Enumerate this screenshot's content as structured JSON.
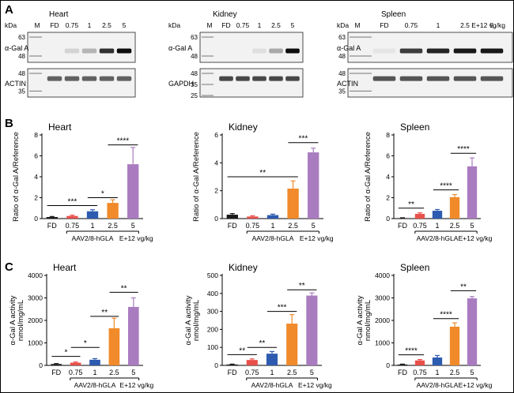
{
  "panels": {
    "A": "A",
    "B": "B",
    "C": "C"
  },
  "colors": {
    "FD": "#1a1a1a",
    "0.75": "#e8504a",
    "1": "#2d5bb0",
    "2.5": "#f08a2a",
    "5": "#a97cc0"
  },
  "blots": [
    {
      "tissue": "Heart",
      "kda": "kDa",
      "lanes": [
        "M",
        "FD",
        "0.75",
        "1",
        "2.5",
        "5"
      ],
      "top": {
        "protein": "α-Gal A",
        "markers": [
          "63",
          "48"
        ]
      },
      "bottom": {
        "protein": "ACTIN",
        "markers": [
          "48",
          "35"
        ]
      },
      "top_intensity": [
        0,
        0,
        0.12,
        0.25,
        0.8,
        0.95
      ],
      "bottom_intensity": [
        0,
        0.6,
        0.6,
        0.6,
        0.6,
        0.6
      ]
    },
    {
      "tissue": "Kidney",
      "kda": "kDa",
      "lanes": [
        "M",
        "FD",
        "0.75",
        "1",
        "2.5",
        "5"
      ],
      "top": {
        "protein": "α-Gal A",
        "markers": [
          "63",
          "48"
        ]
      },
      "bottom": {
        "protein": "GAPDH",
        "markers": [
          "48",
          "35",
          "25"
        ]
      },
      "top_intensity": [
        0,
        0,
        0,
        0.08,
        0.3,
        0.95
      ],
      "bottom_intensity": [
        0,
        0.7,
        0.7,
        0.7,
        0.7,
        0.7
      ]
    },
    {
      "tissue": "Spleen",
      "kda": "kDa",
      "lanes": [
        "M",
        "FD",
        "0.75",
        "1",
        "2.5",
        "5"
      ],
      "top": {
        "protein": "α-Gal A",
        "markers": [
          "63",
          "48"
        ]
      },
      "bottom": {
        "protein": "ACTIN",
        "markers": [
          "48",
          "35"
        ]
      },
      "dose_note": "E+12 vg/kg",
      "top_intensity": [
        0,
        0.05,
        0.75,
        0.85,
        0.9,
        0.9
      ],
      "bottom_intensity": [
        0,
        0.65,
        0.65,
        0.65,
        0.65,
        0.65
      ]
    }
  ],
  "chart_data": [
    {
      "panel": "B",
      "type": "bar",
      "title": "Heart",
      "ylabel": "Ratio of α-Gal A/Reference",
      "ylim": [
        0,
        8
      ],
      "yticks": [
        "0",
        "2",
        "4",
        "6",
        "8"
      ],
      "categories": [
        "FD",
        "0.75",
        "1",
        "2.5",
        "5"
      ],
      "values": [
        0.15,
        0.25,
        0.7,
        1.5,
        5.2
      ],
      "errors": [
        0.05,
        0.08,
        0.15,
        0.3,
        1.6
      ],
      "xgroup": "AAV2/8-hGLA",
      "xunit": "E+12 vg/kg",
      "sig": [
        {
          "from": 0,
          "to": 2,
          "label": "***",
          "y": 1.25
        },
        {
          "from": 2,
          "to": 3,
          "label": "*",
          "y": 2.0
        },
        {
          "from": 3,
          "to": 4,
          "label": "****",
          "y": 7.05
        }
      ]
    },
    {
      "panel": "B",
      "type": "bar",
      "title": "Kidney",
      "ylabel": "Ratio of α-Gal A/Reference",
      "ylim": [
        0,
        6
      ],
      "yticks": [
        "0",
        "2",
        "4",
        "6"
      ],
      "categories": [
        "FD",
        "0.75",
        "1",
        "2.5",
        "5"
      ],
      "values": [
        0.28,
        0.15,
        0.25,
        2.15,
        4.75
      ],
      "errors": [
        0.08,
        0.05,
        0.07,
        0.55,
        0.3
      ],
      "xgroup": "AAV2/8-hGLA",
      "xunit": "E+12 vg/kg",
      "sig": [
        {
          "from": 0,
          "to": 3,
          "label": "**",
          "y": 3.0
        },
        {
          "from": 3,
          "to": 4,
          "label": "***",
          "y": 5.45
        }
      ]
    },
    {
      "panel": "B",
      "type": "bar",
      "title": "Spleen",
      "ylabel": "Ratio of α-Gal A/Reference",
      "ylim": [
        0,
        8
      ],
      "yticks": [
        "0",
        "2",
        "4",
        "6",
        "8"
      ],
      "categories": [
        "FD",
        "0.75",
        "1",
        "2.5",
        "5"
      ],
      "values": [
        0.05,
        0.45,
        0.75,
        2.05,
        5.0
      ],
      "errors": [
        0.03,
        0.1,
        0.12,
        0.25,
        0.8
      ],
      "xgroup": "AAV2/8-hGLA",
      "xunit": "E+12 vg/kg",
      "sig": [
        {
          "from": 0,
          "to": 1,
          "label": "**",
          "y": 1.0
        },
        {
          "from": 2,
          "to": 3,
          "label": "****",
          "y": 2.75
        },
        {
          "from": 3,
          "to": 4,
          "label": "****",
          "y": 6.25
        }
      ]
    },
    {
      "panel": "C",
      "type": "bar",
      "title": "Heart",
      "ylabel": "α-Gal A activity",
      "yunit": "nmol/mg/mL",
      "ylim": [
        0,
        4000
      ],
      "yticks": [
        "0",
        "1000",
        "2000",
        "3000",
        "4000"
      ],
      "categories": [
        "FD",
        "0.75",
        "1",
        "2.5",
        "5"
      ],
      "values": [
        60,
        120,
        250,
        1650,
        2600
      ],
      "errors": [
        20,
        30,
        50,
        450,
        400
      ],
      "xgroup": "AAV2/8-hGLA",
      "xunit": "E+12 vg/kg",
      "sig": [
        {
          "from": 0,
          "to": 1,
          "label": "*",
          "y": 400
        },
        {
          "from": 1,
          "to": 2,
          "label": "*",
          "y": 800
        },
        {
          "from": 2,
          "to": 3,
          "label": "**",
          "y": 2180
        },
        {
          "from": 3,
          "to": 4,
          "label": "**",
          "y": 3250
        }
      ]
    },
    {
      "panel": "C",
      "type": "bar",
      "title": "Kidney",
      "ylabel": "α-Gal A activity",
      "yunit": "nmol/mg/mL",
      "ylim": [
        0,
        500
      ],
      "yticks": [
        "0",
        "100",
        "200",
        "300",
        "400",
        "500"
      ],
      "categories": [
        "FD",
        "0.75",
        "1",
        "2.5",
        "5"
      ],
      "values": [
        5,
        30,
        65,
        232,
        388
      ],
      "errors": [
        2,
        6,
        12,
        50,
        15
      ],
      "xgroup": "AAV2/8-hGLA",
      "xunit": "E+12 vg/kg",
      "sig": [
        {
          "from": 0,
          "to": 1,
          "label": "**",
          "y": 60
        },
        {
          "from": 1,
          "to": 2,
          "label": "**",
          "y": 100
        },
        {
          "from": 2,
          "to": 3,
          "label": "***",
          "y": 300
        },
        {
          "from": 3,
          "to": 4,
          "label": "**",
          "y": 420
        }
      ]
    },
    {
      "panel": "C",
      "type": "bar",
      "title": "Spleen",
      "ylabel": "α-Gal A activity",
      "yunit": "nmol/mg/mL",
      "ylim": [
        0,
        4000
      ],
      "yticks": [
        "0",
        "1000",
        "2000",
        "3000",
        "4000"
      ],
      "categories": [
        "FD",
        "0.75",
        "1",
        "2.5",
        "5"
      ],
      "values": [
        40,
        220,
        350,
        1720,
        2980
      ],
      "errors": [
        15,
        40,
        90,
        170,
        80
      ],
      "xgroup": "AAV2/8-hGLA",
      "xunit": "E+12 vg/kg",
      "sig": [
        {
          "from": 0,
          "to": 1,
          "label": "****",
          "y": 470
        },
        {
          "from": 2,
          "to": 3,
          "label": "****",
          "y": 2080
        },
        {
          "from": 3,
          "to": 4,
          "label": "**",
          "y": 3320
        }
      ]
    }
  ]
}
